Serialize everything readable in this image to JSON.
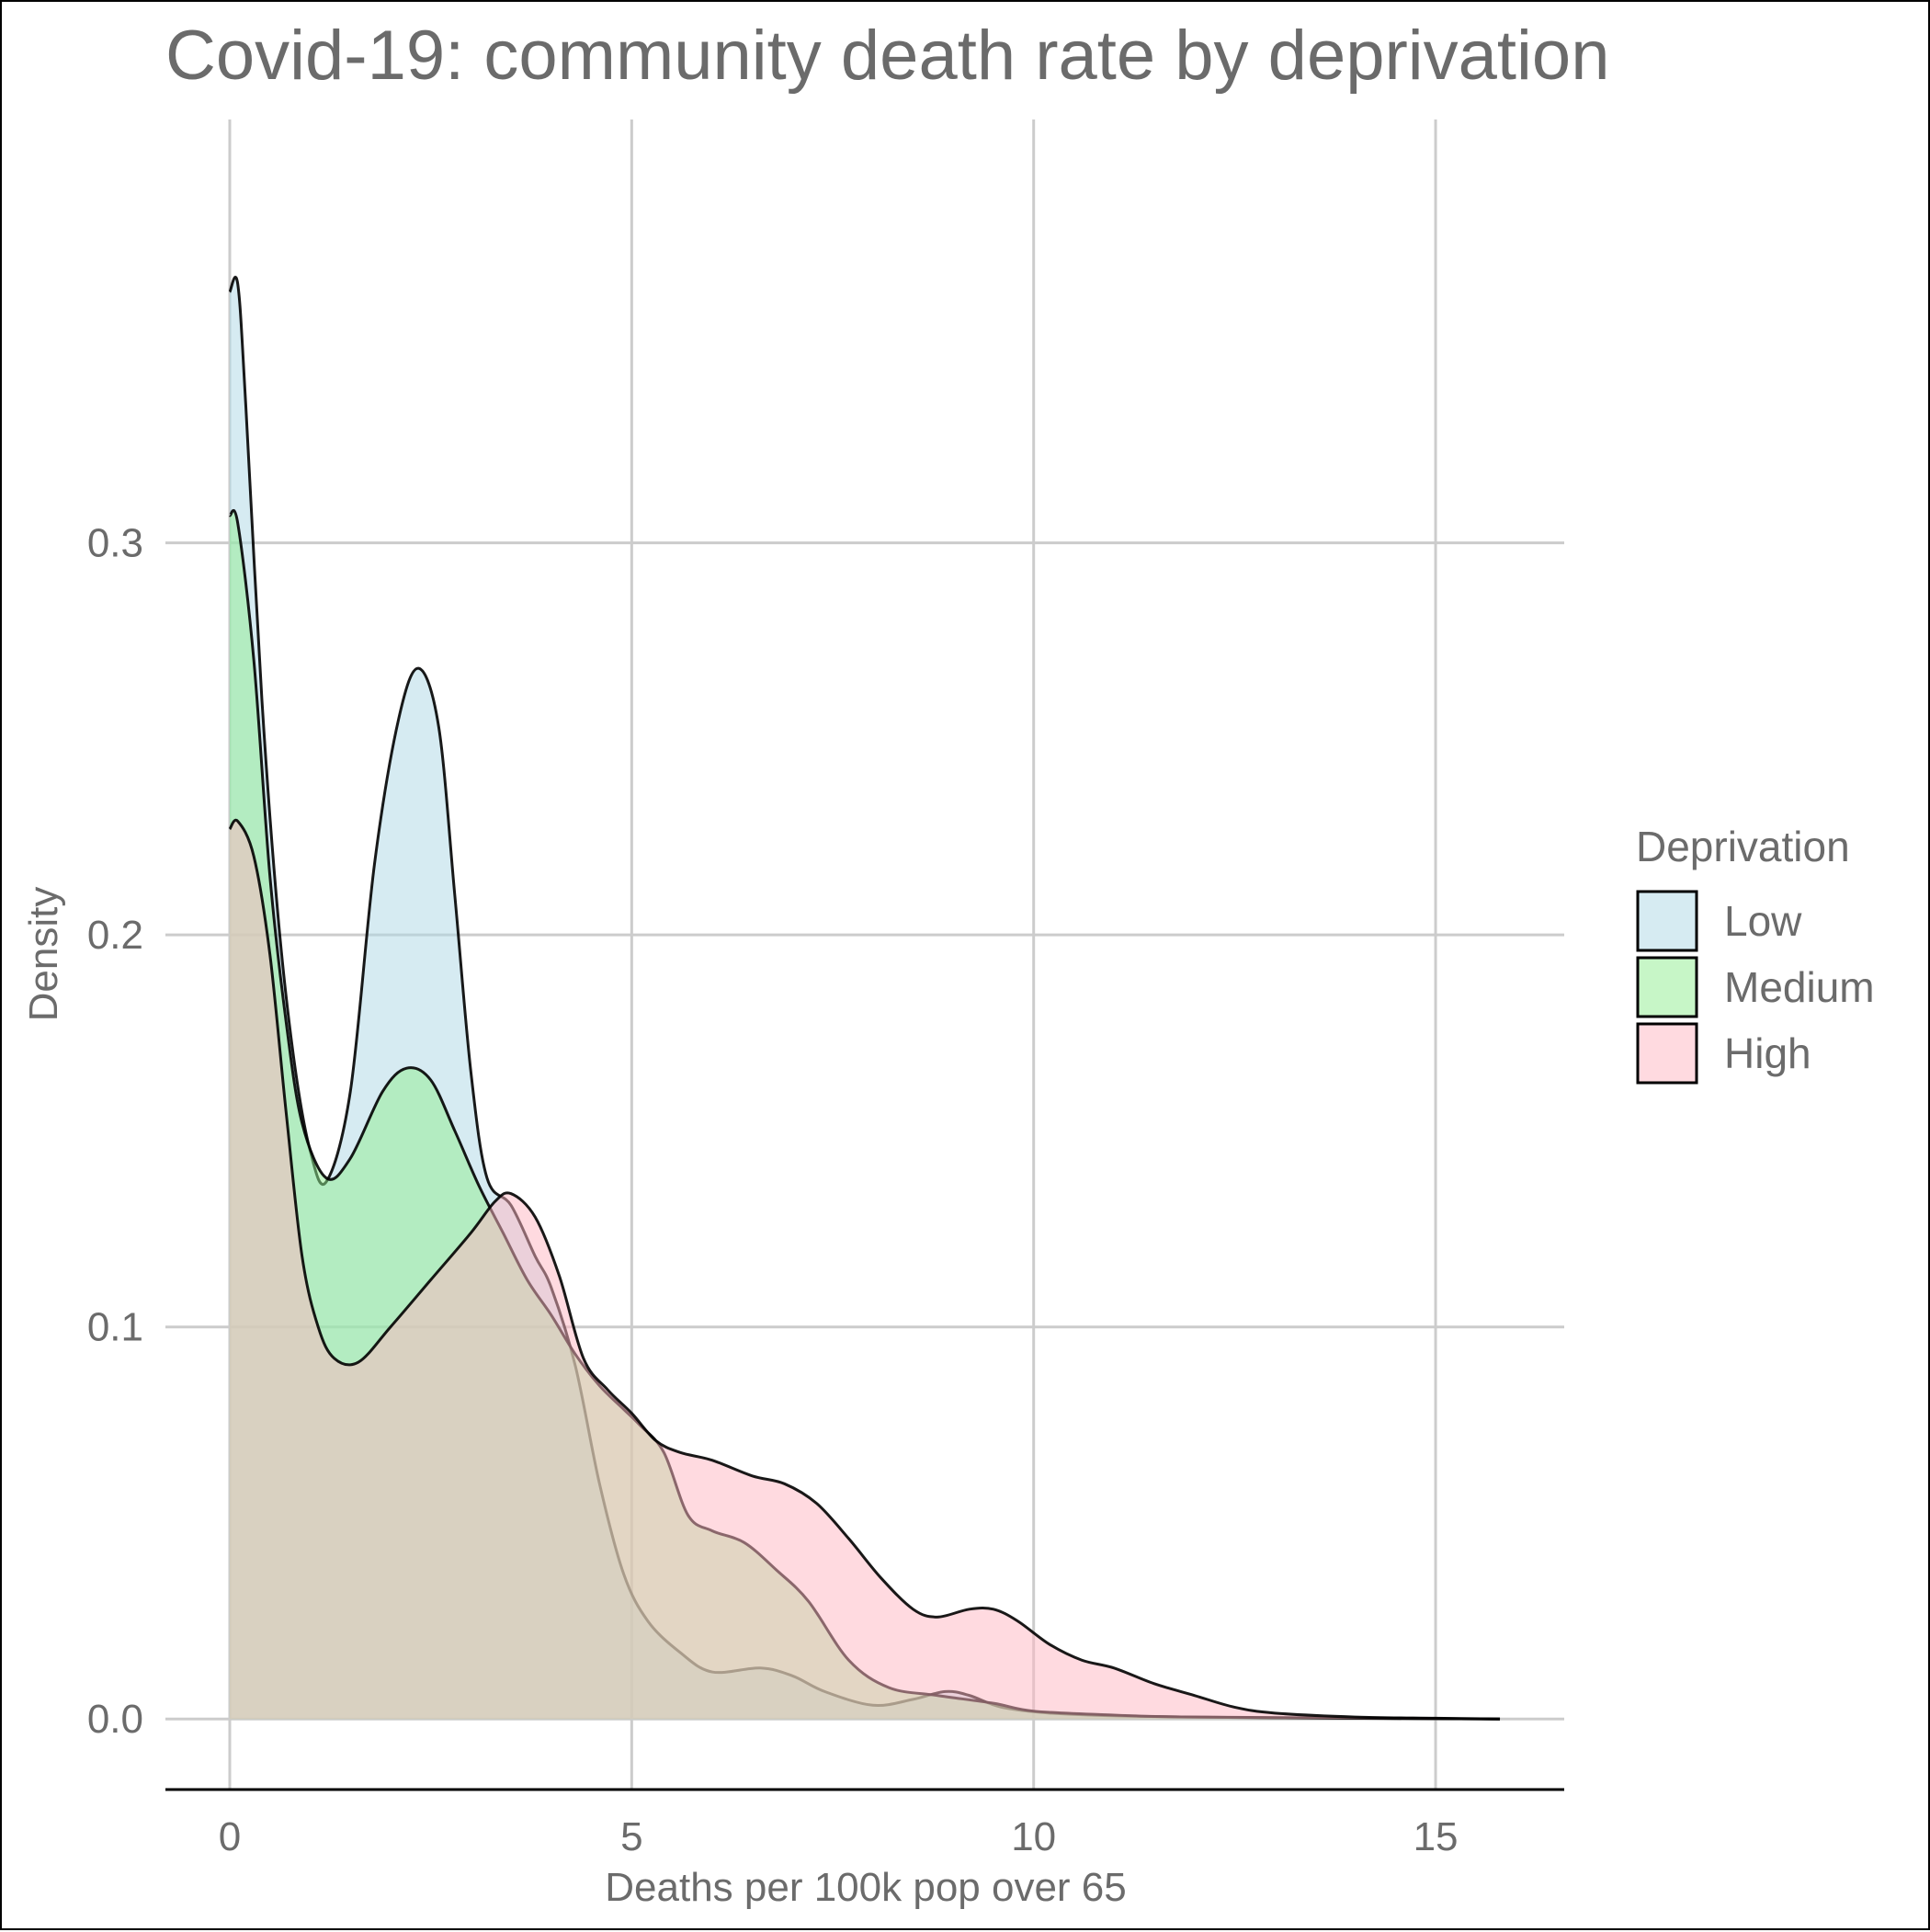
{
  "chart_data": {
    "type": "area",
    "title": "Covid-19: community death rate by deprivation",
    "xlabel": "Deaths per 100k pop over 65",
    "ylabel": "Density",
    "xlim": [
      -0.8,
      16.6
    ],
    "ylim": [
      -0.018,
      0.408
    ],
    "x_ticks": [
      0,
      5,
      10,
      15
    ],
    "x_tick_labels": [
      "0",
      "5",
      "10",
      "15"
    ],
    "y_ticks": [
      0.0,
      0.1,
      0.2,
      0.3
    ],
    "y_tick_labels": [
      "0.0",
      "0.1",
      "0.2",
      "0.3"
    ],
    "grid": true,
    "legend": {
      "title": "Deprivation",
      "position": "right"
    },
    "series": [
      {
        "name": "Low",
        "color": "#add8e6",
        "points": [
          [
            0,
            0.364
          ],
          [
            0.1,
            0.366
          ],
          [
            0.2,
            0.335
          ],
          [
            0.4,
            0.26
          ],
          [
            0.6,
            0.205
          ],
          [
            0.8,
            0.168
          ],
          [
            1.0,
            0.145
          ],
          [
            1.2,
            0.137
          ],
          [
            1.5,
            0.16
          ],
          [
            1.8,
            0.218
          ],
          [
            2.1,
            0.255
          ],
          [
            2.35,
            0.268
          ],
          [
            2.6,
            0.253
          ],
          [
            2.8,
            0.21
          ],
          [
            3.0,
            0.165
          ],
          [
            3.2,
            0.138
          ],
          [
            3.5,
            0.131
          ],
          [
            3.8,
            0.118
          ],
          [
            4.0,
            0.11
          ],
          [
            4.3,
            0.09
          ],
          [
            4.6,
            0.06
          ],
          [
            4.9,
            0.037
          ],
          [
            5.2,
            0.025
          ],
          [
            5.6,
            0.017
          ],
          [
            6.0,
            0.012
          ],
          [
            6.6,
            0.013
          ],
          [
            7.0,
            0.011
          ],
          [
            7.4,
            0.007
          ],
          [
            8.0,
            0.0035
          ],
          [
            8.5,
            0.005
          ],
          [
            8.9,
            0.007
          ],
          [
            9.2,
            0.006
          ],
          [
            9.6,
            0.003
          ],
          [
            10.2,
            0.0015
          ],
          [
            11,
            0.0008
          ],
          [
            12,
            0.0005
          ],
          [
            13.0,
            0.0003
          ],
          [
            15.8,
            0.0
          ]
        ]
      },
      {
        "name": "Medium",
        "color": "#90ee90",
        "points": [
          [
            0,
            0.307
          ],
          [
            0.1,
            0.305
          ],
          [
            0.3,
            0.27
          ],
          [
            0.5,
            0.215
          ],
          [
            0.7,
            0.178
          ],
          [
            0.9,
            0.152
          ],
          [
            1.2,
            0.138
          ],
          [
            1.5,
            0.143
          ],
          [
            1.9,
            0.16
          ],
          [
            2.2,
            0.166
          ],
          [
            2.5,
            0.163
          ],
          [
            2.8,
            0.15
          ],
          [
            3.1,
            0.136
          ],
          [
            3.4,
            0.124
          ],
          [
            3.7,
            0.112
          ],
          [
            4.0,
            0.103
          ],
          [
            4.3,
            0.093
          ],
          [
            4.6,
            0.085
          ],
          [
            4.9,
            0.079
          ],
          [
            5.1,
            0.075
          ],
          [
            5.4,
            0.068
          ],
          [
            5.7,
            0.052
          ],
          [
            6.0,
            0.048
          ],
          [
            6.4,
            0.045
          ],
          [
            6.8,
            0.038
          ],
          [
            7.2,
            0.03
          ],
          [
            7.7,
            0.015
          ],
          [
            8.2,
            0.008
          ],
          [
            8.8,
            0.006
          ],
          [
            9.5,
            0.004
          ],
          [
            10.0,
            0.002
          ],
          [
            11,
            0.001
          ],
          [
            12,
            0.0005
          ],
          [
            15.8,
            0.0
          ]
        ]
      },
      {
        "name": "High",
        "color": "#ffb6c1",
        "points": [
          [
            0,
            0.227
          ],
          [
            0.1,
            0.229
          ],
          [
            0.3,
            0.22
          ],
          [
            0.5,
            0.195
          ],
          [
            0.7,
            0.155
          ],
          [
            0.9,
            0.118
          ],
          [
            1.1,
            0.1
          ],
          [
            1.3,
            0.092
          ],
          [
            1.6,
            0.091
          ],
          [
            2.0,
            0.1
          ],
          [
            2.5,
            0.112
          ],
          [
            3.0,
            0.124
          ],
          [
            3.3,
            0.132
          ],
          [
            3.5,
            0.134
          ],
          [
            3.8,
            0.128
          ],
          [
            4.1,
            0.113
          ],
          [
            4.4,
            0.092
          ],
          [
            4.7,
            0.084
          ],
          [
            5.0,
            0.078
          ],
          [
            5.3,
            0.071
          ],
          [
            5.6,
            0.068
          ],
          [
            6.0,
            0.066
          ],
          [
            6.5,
            0.062
          ],
          [
            6.9,
            0.06
          ],
          [
            7.3,
            0.055
          ],
          [
            7.7,
            0.046
          ],
          [
            8.1,
            0.036
          ],
          [
            8.5,
            0.028
          ],
          [
            8.8,
            0.026
          ],
          [
            9.2,
            0.028
          ],
          [
            9.5,
            0.028
          ],
          [
            9.8,
            0.025
          ],
          [
            10.2,
            0.019
          ],
          [
            10.6,
            0.015
          ],
          [
            11.0,
            0.013
          ],
          [
            11.5,
            0.009
          ],
          [
            12.0,
            0.006
          ],
          [
            12.5,
            0.003
          ],
          [
            13.0,
            0.0015
          ],
          [
            14.0,
            0.0005
          ],
          [
            15.0,
            0.0002
          ],
          [
            15.8,
            0.0
          ]
        ]
      }
    ]
  }
}
